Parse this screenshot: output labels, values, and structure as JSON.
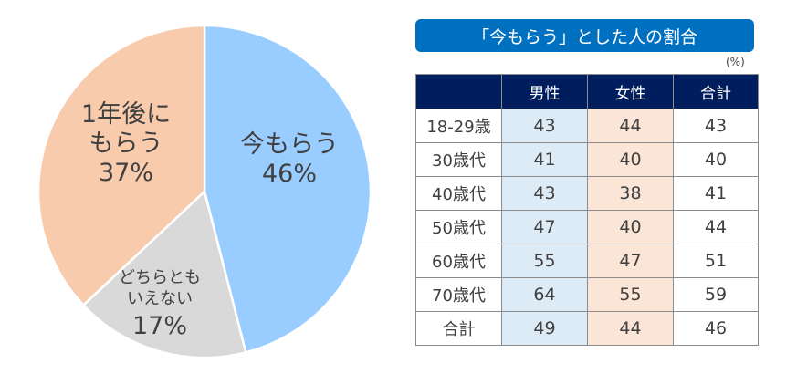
{
  "chart_data": [
    {
      "type": "pie",
      "title": "",
      "slices": [
        {
          "label": "今もらう",
          "value": 46,
          "color": "#99ccff"
        },
        {
          "label": "どちらともいえない",
          "value": 17,
          "color": "#d9d9d9"
        },
        {
          "label": "1年後にもらう",
          "value": 37,
          "color": "#f8cbad"
        }
      ],
      "start_angle_deg": 0,
      "direction": "clockwise"
    },
    {
      "type": "table",
      "title": "「今もらう」とした人の割合",
      "unit": "(%)",
      "columns": [
        "",
        "男性",
        "女性",
        "合計"
      ],
      "rows": [
        {
          "label": "18-29歳",
          "values": [
            43,
            44,
            43
          ]
        },
        {
          "label": "30歳代",
          "values": [
            41,
            40,
            40
          ]
        },
        {
          "label": "40歳代",
          "values": [
            43,
            38,
            41
          ]
        },
        {
          "label": "50歳代",
          "values": [
            47,
            40,
            44
          ]
        },
        {
          "label": "60歳代",
          "values": [
            55,
            47,
            51
          ]
        },
        {
          "label": "70歳代",
          "values": [
            64,
            55,
            59
          ]
        },
        {
          "label": "合計",
          "values": [
            49,
            44,
            46
          ]
        }
      ]
    }
  ],
  "pie": {
    "labels": {
      "now": {
        "line1": "今もらう",
        "pct": "46%"
      },
      "later": {
        "line1": "1年後に",
        "line2": "もらう",
        "pct": "37%"
      },
      "neither": {
        "line1": "どちらとも",
        "line2": "いえない",
        "pct": "17%"
      }
    }
  },
  "table": {
    "title": "「今もらう」とした人の割合",
    "unit": "(%)",
    "headers": [
      "",
      "男性",
      "女性",
      "合計"
    ],
    "rows": [
      [
        "18-29歳",
        "43",
        "44",
        "43"
      ],
      [
        "30歳代",
        "41",
        "40",
        "40"
      ],
      [
        "40歳代",
        "43",
        "38",
        "41"
      ],
      [
        "50歳代",
        "47",
        "40",
        "44"
      ],
      [
        "60歳代",
        "55",
        "47",
        "51"
      ],
      [
        "70歳代",
        "64",
        "55",
        "59"
      ],
      [
        "合計",
        "49",
        "44",
        "46"
      ]
    ]
  },
  "colors": {
    "now": "#99ccff",
    "neither": "#d9d9d9",
    "later": "#f8cbad",
    "title_bar": "#0070c0",
    "table_header": "#001e5e",
    "male_col": "#ddebf7",
    "female_col": "#fbe5d6"
  }
}
